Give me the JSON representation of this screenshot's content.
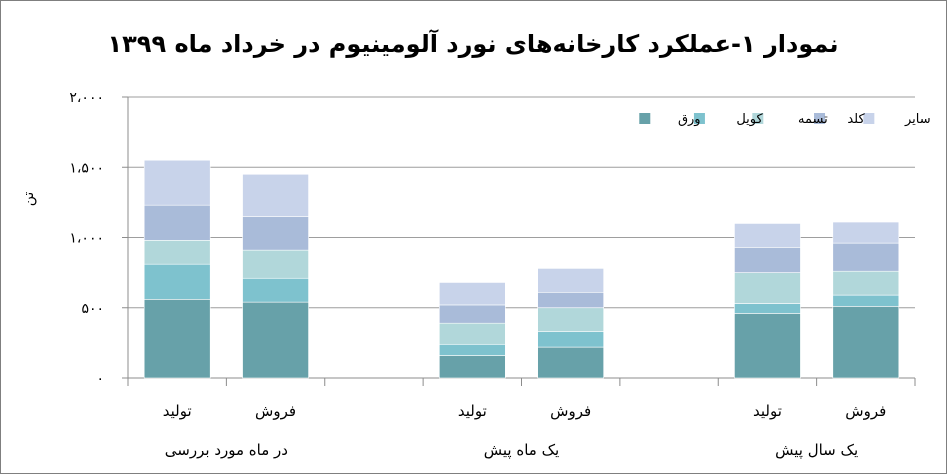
{
  "chart_data": {
    "type": "bar",
    "stacked": true,
    "title": "نمودار ۱-عملکرد کارخانه‌های نورد آلومینیوم در خرداد ماه ۱۳۹۹",
    "ylabel": "تن",
    "ylim": [
      0,
      2000
    ],
    "yticks": [
      0,
      500,
      1000,
      1500,
      2000
    ],
    "ytick_labels": [
      "۰",
      "۵۰۰",
      "۱،۰۰۰",
      "۱،۵۰۰",
      "۲،۰۰۰"
    ],
    "grid": true,
    "legend_position": "top-right",
    "categories": [
      "تولید",
      "فروش",
      "تولید",
      "فروش",
      "تولید",
      "فروش"
    ],
    "groups": [
      {
        "label": "در ماه مورد بررسی",
        "categories": [
          "تولید",
          "فروش"
        ]
      },
      {
        "label": "یک ماه پیش",
        "categories": [
          "تولید",
          "فروش"
        ]
      },
      {
        "label": "یک سال پیش",
        "categories": [
          "تولید",
          "فروش"
        ]
      }
    ],
    "series": [
      {
        "name": "ورق",
        "color": "#67a1a9",
        "values": [
          560,
          540,
          160,
          220,
          460,
          510
        ]
      },
      {
        "name": "کویل",
        "color": "#7ec2ce",
        "values": [
          250,
          170,
          80,
          110,
          70,
          80
        ]
      },
      {
        "name": "تسمه",
        "color": "#b1d7da",
        "values": [
          170,
          200,
          150,
          170,
          220,
          170
        ]
      },
      {
        "name": "کلد",
        "color": "#a9bbd9",
        "values": [
          250,
          240,
          130,
          110,
          180,
          200
        ]
      },
      {
        "name": "سایر",
        "color": "#c8d3ea",
        "values": [
          320,
          300,
          160,
          170,
          170,
          150
        ]
      }
    ]
  }
}
